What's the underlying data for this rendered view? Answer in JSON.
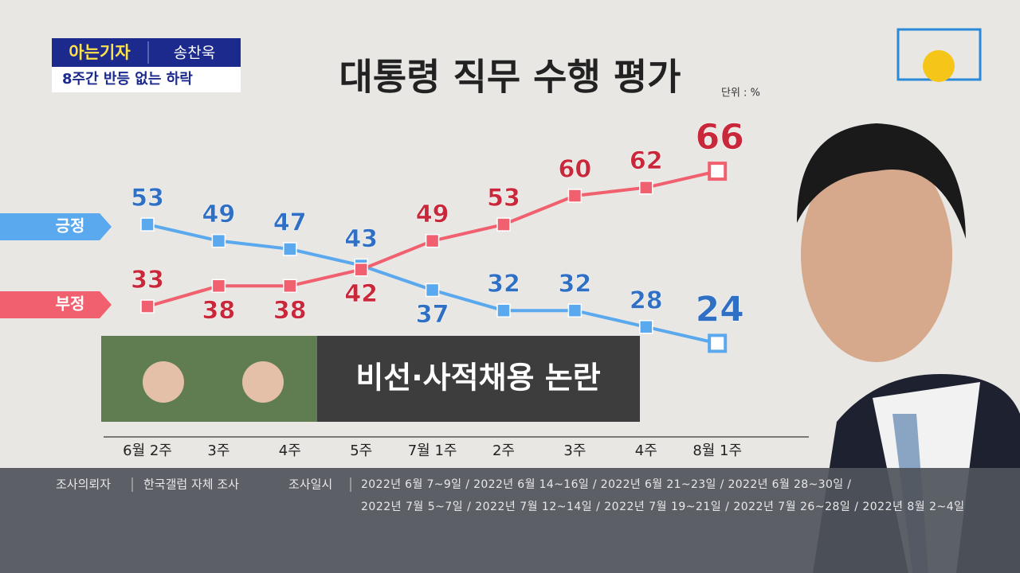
{
  "header": {
    "brand": "아는기자",
    "reporter": "송찬욱",
    "headline": "8주간 반등 없는 하락"
  },
  "chart_data": {
    "type": "line",
    "title": "대통령 직무 수행 평가",
    "unit": "단위 : %",
    "categories": [
      "6월 2주",
      "3주",
      "4주",
      "5주",
      "7월 1주",
      "2주",
      "3주",
      "4주",
      "8월 1주"
    ],
    "series": [
      {
        "name": "긍정",
        "color": "#5aa8ee",
        "label_color": "#2f6fc4",
        "values": [
          53,
          49,
          47,
          43,
          37,
          32,
          32,
          28,
          24
        ]
      },
      {
        "name": "부정",
        "color": "#f0606e",
        "label_color": "#c8283a",
        "values": [
          33,
          38,
          38,
          42,
          49,
          53,
          60,
          62,
          66
        ]
      }
    ],
    "annotation": "비선·사적채용 논란"
  },
  "footer": {
    "client_label": "조사의뢰자",
    "client": "한국갤럽 자체 조사",
    "date_label": "조사일시",
    "dates": [
      "2022년 6월 7~9일 / 2022년 6월 14~16일 / 2022년 6월 21~23일 / 2022년 6월 28~30일 /",
      "2022년 7월 5~7일 / 2022년 7월 12~14일 / 2022년 7월 19~21일 / 2022년 7월 26~28일 / 2022년 8월 2~4일"
    ]
  }
}
